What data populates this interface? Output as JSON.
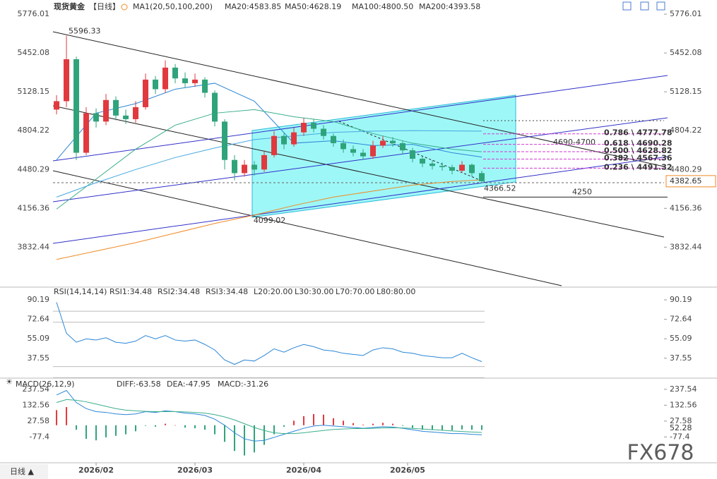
{
  "chart_data": {
    "type": "candlestick",
    "title": "现货黄金",
    "period": "【日线】",
    "indicator": "MA1(20,50,100,200)",
    "xlim": [
      -0.36,
      61.43
    ],
    "xticks": [
      {
        "value": 4,
        "label": "2026/02"
      },
      {
        "value": 14,
        "label": "2026/03"
      },
      {
        "value": 25,
        "label": "2026/04"
      },
      {
        "value": 35.5,
        "label": "2026/05"
      }
    ],
    "ylim": [
      3511,
      5894
    ],
    "yticks": [
      5776.01,
      5452.08,
      5128.15,
      4804.22,
      4480.29,
      4156.36,
      3832.44
    ],
    "up_color": "#e0393e",
    "down_color": "#2fa37a",
    "open": [
      4980,
      5050,
      5400,
      4620,
      4950,
      4880,
      5060,
      4930,
      4900,
      5000,
      5230,
      5150,
      5330,
      5240,
      5200,
      5230,
      5120,
      4880,
      4560,
      4450,
      4520,
      4480,
      4600,
      4760,
      4690,
      4790,
      4870,
      4820,
      4760,
      4700,
      4650,
      4620,
      4590,
      4680,
      4720,
      4700,
      4640,
      4570,
      4530,
      4510,
      4500,
      4470,
      4520,
      4450
    ],
    "high": [
      5100,
      5596.33,
      5420,
      5000,
      4990,
      5110,
      5090,
      4980,
      5050,
      5280,
      5260,
      5390,
      5360,
      5290,
      5280,
      5250,
      5140,
      4900,
      4600,
      4560,
      4550,
      4640,
      4800,
      4790,
      4830,
      4910,
      4900,
      4850,
      4780,
      4730,
      4680,
      4650,
      4720,
      4760,
      4750,
      4720,
      4660,
      4590,
      4560,
      4540,
      4520,
      4550,
      4530,
      4470
    ],
    "low": [
      4940,
      5000,
      4560,
      4600,
      4830,
      4850,
      4890,
      4860,
      4870,
      4980,
      5110,
      5120,
      5200,
      5160,
      5170,
      5080,
      4840,
      4480,
      4390,
      4420,
      4430,
      4460,
      4580,
      4650,
      4670,
      4760,
      4790,
      4730,
      4670,
      4620,
      4590,
      4560,
      4570,
      4660,
      4670,
      4610,
      4540,
      4500,
      4480,
      4470,
      4440,
      4450,
      4420,
      4366.52
    ],
    "close": [
      5050,
      5400,
      4620,
      4950,
      4880,
      5060,
      4930,
      4900,
      5000,
      5230,
      5150,
      5330,
      5240,
      5200,
      5230,
      5120,
      4880,
      4560,
      4450,
      4520,
      4480,
      4600,
      4760,
      4690,
      4790,
      4870,
      4820,
      4760,
      4700,
      4650,
      4620,
      4590,
      4680,
      4720,
      4700,
      4640,
      4570,
      4530,
      4510,
      4500,
      4470,
      4520,
      4450,
      4382.65
    ],
    "ma_index": [
      0,
      4,
      8,
      12,
      16,
      20,
      24,
      28,
      32,
      36,
      40,
      43
    ],
    "ma": [
      {
        "name": "MA20:4583.85",
        "color": "#2b86d6",
        "values": [
          4560,
          4950,
          5030,
          5150,
          5200,
          5050,
          4700,
          4720,
          4680,
          4690,
          4620,
          4583.85
        ]
      },
      {
        "name": "MA50:4628.19",
        "color": "#3aae8c",
        "values": [
          4150,
          4400,
          4650,
          4850,
          4950,
          4980,
          4920,
          4880,
          4780,
          4700,
          4650,
          4628.19
        ]
      },
      {
        "name": "MA100:4800.50",
        "color": "#45a8e0",
        "values": [
          4250,
          4370,
          4480,
          4580,
          4660,
          4730,
          4760,
          4790,
          4800,
          4805,
          4802,
          4800.5
        ]
      },
      {
        "name": "MA200:4393.58",
        "color": "#f08a24",
        "values": [
          3730,
          3800,
          3870,
          3950,
          4030,
          4100,
          4180,
          4250,
          4300,
          4350,
          4380,
          4393.58
        ]
      }
    ],
    "annotations": [
      {
        "label": "5596.33",
        "value": 5596.33,
        "x": 1,
        "color": "#e0393e"
      },
      {
        "label": "4099.02",
        "value": 4099.02,
        "x": 19.7,
        "color": "#2fa37a"
      },
      {
        "label": "4366.52",
        "value": 4366.52,
        "x": 43,
        "color": "#2fa37a"
      }
    ],
    "zone": {
      "label": "4690-4700",
      "values": [
        4690,
        4700
      ]
    },
    "level": {
      "label": "4250",
      "value": 4250
    },
    "fib": [
      {
        "value": 4777.78,
        "label": "0.786 \\ 4777.78"
      },
      {
        "value": 4690.28,
        "label": "0.618 \\ 4690.28"
      },
      {
        "value": 4628.82,
        "label": "0.500 \\ 4628.82"
      },
      {
        "value": 4567.36,
        "label": "0.382 \\ 4567.36"
      },
      {
        "value": 4491.32,
        "label": "0.236 \\ 4491.32"
      }
    ],
    "rsi": {
      "title": "RSI(14,14,14)",
      "ylim": [
        19.6,
        101.7
      ],
      "yticks": [
        90.19,
        72.64,
        55.09,
        37.55
      ],
      "series": [
        {
          "name": "RSI1:34.48",
          "color": "#2b86d6",
          "values": [
            88,
            60,
            52,
            55,
            54,
            56,
            52,
            51,
            53,
            58,
            55,
            58,
            54,
            53,
            54,
            50,
            45,
            36,
            32,
            36,
            35,
            40,
            46,
            43,
            47,
            50,
            48,
            45,
            44,
            42,
            41,
            40,
            45,
            47,
            46,
            43,
            42,
            40,
            39,
            38,
            38,
            42,
            38,
            34.48
          ]
        }
      ],
      "labels": [
        {
          "name": "RSI2:34.48",
          "color": "#3aae8c"
        },
        {
          "name": "RSI3:34.48",
          "color": "#45a8e0"
        }
      ],
      "levels": [
        {
          "value": 20,
          "label": "L20:20.00"
        },
        {
          "value": 30,
          "label": "L30:30.00"
        },
        {
          "value": 70,
          "label": "L70:70.00"
        },
        {
          "value": 80,
          "label": "L80:80.00"
        }
      ]
    },
    "macd": {
      "title": "MACD(26,12,9)",
      "ylim": [
        -248.3,
        311.6
      ],
      "yticks": [
        237.54,
        132.56,
        27.58,
        -77.4
      ],
      "diff": {
        "name": "DIFF:-63.58",
        "color": "#2b86d6",
        "values": [
          200,
          230,
          150,
          110,
          90,
          85,
          75,
          70,
          75,
          90,
          85,
          95,
          90,
          80,
          75,
          65,
          40,
          0,
          -50,
          -90,
          -105,
          -100,
          -80,
          -60,
          -40,
          -20,
          -5,
          0,
          -5,
          -10,
          -15,
          -20,
          -15,
          -10,
          -12,
          -20,
          -30,
          -40,
          -45,
          -50,
          -55,
          -55,
          -60,
          -63.58
        ]
      },
      "dea": {
        "name": "DEA:-47.95",
        "color": "#3aae8c",
        "values": [
          150,
          170,
          165,
          155,
          140,
          125,
          110,
          100,
          95,
          92,
          90,
          90,
          90,
          88,
          85,
          80,
          70,
          55,
          35,
          10,
          -15,
          -35,
          -50,
          -55,
          -55,
          -50,
          -42,
          -35,
          -28,
          -25,
          -22,
          -22,
          -20,
          -18,
          -17,
          -18,
          -21,
          -25,
          -29,
          -33,
          -38,
          -41,
          -45,
          -47.95
        ]
      },
      "hist": {
        "name": "MACD:-31.26",
        "color": "#2b86d6",
        "values": [
          100,
          120,
          -30,
          -90,
          -100,
          -80,
          -70,
          -60,
          -40,
          -4,
          -10,
          10,
          0,
          -16,
          -20,
          -30,
          -60,
          -110,
          -170,
          -200,
          -180,
          -130,
          -60,
          -10,
          30,
          60,
          74,
          70,
          46,
          30,
          14,
          4,
          10,
          16,
          10,
          -4,
          -18,
          -30,
          -32,
          -34,
          -34,
          -28,
          -30,
          -31.26
        ]
      },
      "tag": 52.28
    },
    "footer": {
      "period": "日线 ▲",
      "watermark": "FX678"
    }
  }
}
